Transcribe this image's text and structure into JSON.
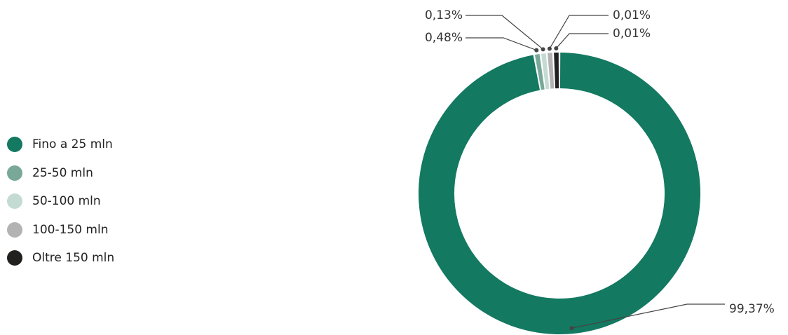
{
  "chart_data": {
    "type": "pie",
    "variant": "donut",
    "categories": [
      "Fino a 25 mln",
      "25-50 mln",
      "50-100 mln",
      "100-150 mln",
      "Oltre 150 mln"
    ],
    "values": [
      99.37,
      0.48,
      0.13,
      0.01,
      0.01
    ],
    "value_labels": [
      "99,37%",
      "0,48%",
      "0,13%",
      "0,01%",
      "0,01%"
    ],
    "colors": [
      "#137961",
      "#7aa898",
      "#c3dbd3",
      "#b3b3b3",
      "#221f1f"
    ],
    "legend_position": "left",
    "title": ""
  }
}
